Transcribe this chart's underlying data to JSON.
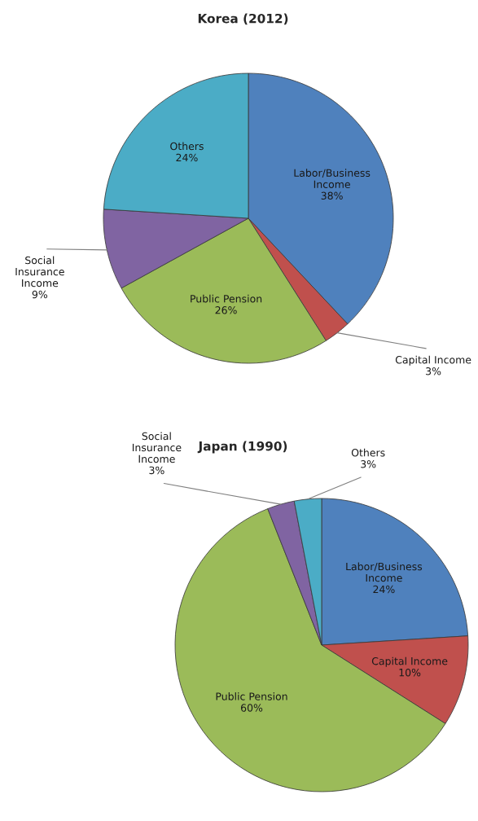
{
  "chart_data": [
    {
      "type": "pie",
      "title": "Korea (2012)",
      "categories": [
        "Labor/Business\nIncome",
        "Capital Income",
        "Public Pension",
        "Social\nInsurance\nIncome",
        "Others"
      ],
      "values": [
        38,
        3,
        26,
        9,
        24
      ],
      "value_labels": [
        "38%",
        "3%",
        "26%",
        "9%",
        "24%"
      ],
      "colors": [
        "#4f81bd",
        "#c0504d",
        "#9bbb59",
        "#8064a2",
        "#4bacc6"
      ]
    },
    {
      "type": "pie",
      "title": "Japan (1990)",
      "categories": [
        "Labor/Business\nIncome",
        "Capital Income",
        "Public Pension",
        "Social\nInsurance\nIncome",
        "Others"
      ],
      "values": [
        24,
        10,
        60,
        3,
        3
      ],
      "value_labels": [
        "24%",
        "10%",
        "60%",
        "3%",
        "3%"
      ],
      "colors": [
        "#4f81bd",
        "#c0504d",
        "#9bbb59",
        "#8064a2",
        "#4bacc6"
      ]
    }
  ]
}
